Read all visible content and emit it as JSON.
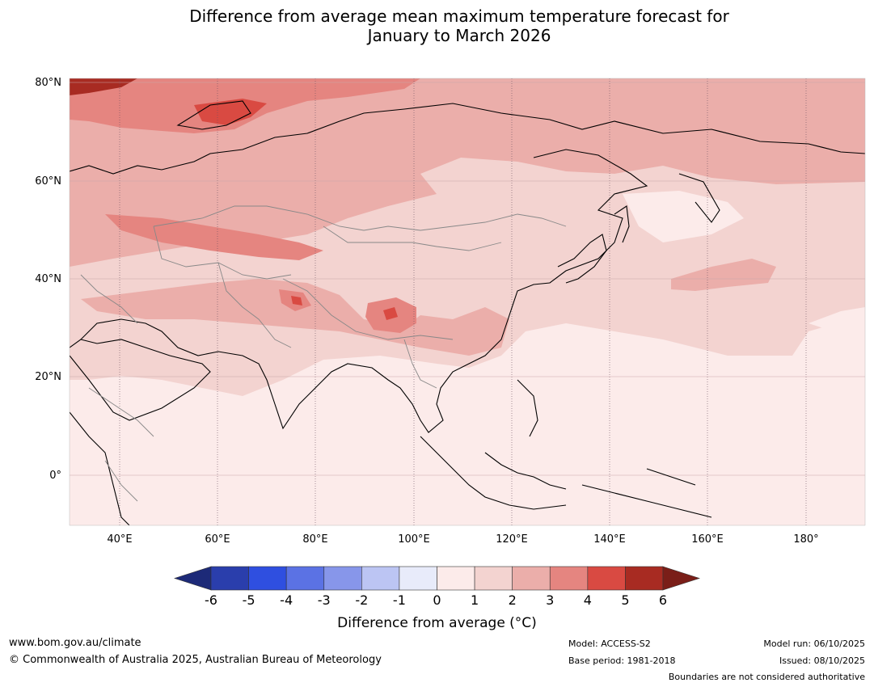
{
  "title": {
    "line1": "Difference from average mean maximum temperature forecast for",
    "line2": "January to March 2026"
  },
  "latitudes": [
    "80°N",
    "60°N",
    "40°N",
    "20°N",
    "0°"
  ],
  "longitudes": [
    "40°E",
    "60°E",
    "80°E",
    "100°E",
    "120°E",
    "140°E",
    "160°E",
    "180°"
  ],
  "colorbar": {
    "ticks": [
      "-6",
      "-5",
      "-4",
      "-3",
      "-2",
      "-1",
      "0",
      "1",
      "2",
      "3",
      "4",
      "5",
      "6"
    ],
    "colors": [
      "#2a3eac",
      "#2f4fe0",
      "#5b72e4",
      "#8796ea",
      "#bcc5f3",
      "#e8ebfa",
      "#fcebea",
      "#f3d3d0",
      "#ebaeaa",
      "#e58580",
      "#d94a42",
      "#a82b22"
    ],
    "under_color": "#1d2a78",
    "over_color": "#7a1e18",
    "label": "Difference from average (°C)"
  },
  "footer": {
    "url": "www.bom.gov.au/climate",
    "copyright": "© Commonwealth of Australia 2025, Australian Bureau of Meteorology",
    "model": "Model: ACCESS-S2",
    "base_period": "Base period: 1981-2018",
    "model_run": "Model run: 06/10/2025",
    "issued": "Issued: 08/10/2025",
    "disclaimer": "Boundaries are not considered authoritative"
  }
}
